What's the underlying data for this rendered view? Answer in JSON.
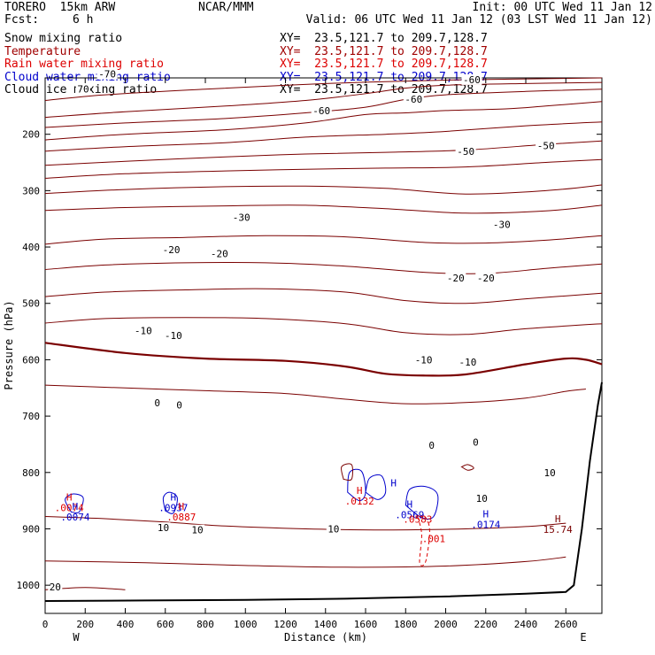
{
  "header": {
    "model": "TORERO  15km ARW",
    "center": "NCAR/MMM",
    "init": "Init: 00 UTC Wed 11 Jan 12",
    "fcst_label": "Fcst:",
    "fcst_value": "6 h",
    "valid": "Valid: 06 UTC Wed 11 Jan 12 (03 LST Wed 11 Jan 12)"
  },
  "fields": [
    {
      "name": "Snow mixing ratio",
      "xy": "XY=  23.5,121.7 to 209.7,128.7",
      "color": "#000000"
    },
    {
      "name": "Temperature",
      "xy": "XY=  23.5,121.7 to 209.7,128.7",
      "color": "#a00000"
    },
    {
      "name": "Rain water mixing ratio",
      "xy": "XY=  23.5,121.7 to 209.7,128.7",
      "color": "#dd0000"
    },
    {
      "name": "Cloud water mixing ratio",
      "xy": "XY=  23.5,121.7 to 209.7,128.7",
      "color": "#0000cc"
    },
    {
      "name": "Cloud ice mixing ratio",
      "xy": "XY=  23.5,121.7 to 209.7,128.7",
      "color": "#000000"
    }
  ],
  "chart_data": {
    "type": "line",
    "xlabel": "Distance (km)",
    "ylabel": "Pressure (hPa)",
    "xlim": [
      0,
      2780
    ],
    "ylim": [
      1050,
      100
    ],
    "x_ticks": [
      0,
      200,
      400,
      600,
      800,
      1000,
      1200,
      1400,
      1600,
      1800,
      2000,
      2200,
      2400,
      2600
    ],
    "y_ticks": [
      200,
      300,
      400,
      500,
      600,
      700,
      800,
      900,
      1000
    ],
    "x_end_labels": [
      "W",
      "E"
    ],
    "colors": {
      "temperature": "#7a0000",
      "rain": "#dd0000",
      "cloud_water": "#0000cc",
      "terrain": "#000000"
    },
    "temperature_contours": [
      {
        "value": -70,
        "points": [
          [
            0,
            140
          ],
          [
            300,
            130
          ],
          [
            800,
            120
          ],
          [
            1400,
            110
          ],
          [
            2000,
            104
          ],
          [
            2780,
            100
          ]
        ]
      },
      {
        "value": -60,
        "points": [
          [
            0,
            170
          ],
          [
            400,
            160
          ],
          [
            900,
            150
          ],
          [
            1300,
            140
          ],
          [
            1600,
            128
          ],
          [
            1800,
            118
          ],
          [
            2000,
            113
          ],
          [
            2400,
            110
          ],
          [
            2780,
            108
          ]
        ]
      },
      {
        "value": -55,
        "points": [
          [
            0,
            188
          ],
          [
            400,
            180
          ],
          [
            900,
            172
          ],
          [
            1300,
            162
          ],
          [
            1600,
            152
          ],
          [
            1800,
            138
          ],
          [
            2000,
            130
          ],
          [
            2400,
            124
          ],
          [
            2780,
            120
          ]
        ]
      },
      {
        "value": -50,
        "points": [
          [
            0,
            210
          ],
          [
            400,
            200
          ],
          [
            900,
            192
          ],
          [
            1300,
            180
          ],
          [
            1600,
            165
          ],
          [
            1800,
            162
          ],
          [
            2000,
            158
          ],
          [
            2300,
            155
          ],
          [
            2500,
            150
          ],
          [
            2780,
            142
          ]
        ]
      },
      {
        "value": -45,
        "points": [
          [
            0,
            230
          ],
          [
            400,
            222
          ],
          [
            900,
            215
          ],
          [
            1300,
            205
          ],
          [
            1700,
            200
          ],
          [
            2000,
            195
          ],
          [
            2400,
            185
          ],
          [
            2780,
            178
          ]
        ]
      },
      {
        "value": -40,
        "points": [
          [
            0,
            255
          ],
          [
            400,
            248
          ],
          [
            900,
            240
          ],
          [
            1300,
            235
          ],
          [
            1700,
            232
          ],
          [
            2100,
            228
          ],
          [
            2500,
            218
          ],
          [
            2780,
            212
          ]
        ]
      },
      {
        "value": -35,
        "points": [
          [
            0,
            278
          ],
          [
            400,
            270
          ],
          [
            900,
            265
          ],
          [
            1300,
            262
          ],
          [
            1700,
            260
          ],
          [
            2100,
            258
          ],
          [
            2500,
            250
          ],
          [
            2780,
            245
          ]
        ]
      },
      {
        "value": -30,
        "points": [
          [
            0,
            305
          ],
          [
            400,
            298
          ],
          [
            900,
            293
          ],
          [
            1300,
            292
          ],
          [
            1700,
            296
          ],
          [
            2100,
            306
          ],
          [
            2500,
            300
          ],
          [
            2780,
            290
          ]
        ]
      },
      {
        "value": -25,
        "points": [
          [
            0,
            335
          ],
          [
            400,
            330
          ],
          [
            900,
            327
          ],
          [
            1300,
            326
          ],
          [
            1700,
            332
          ],
          [
            2100,
            340
          ],
          [
            2500,
            336
          ],
          [
            2780,
            326
          ]
        ]
      },
      {
        "value": -20,
        "points": [
          [
            0,
            395
          ],
          [
            300,
            386
          ],
          [
            700,
            383
          ],
          [
            1100,
            380
          ],
          [
            1500,
            382
          ],
          [
            1900,
            392
          ],
          [
            2200,
            393
          ],
          [
            2500,
            388
          ],
          [
            2780,
            380
          ]
        ]
      },
      {
        "value": -15,
        "points": [
          [
            0,
            440
          ],
          [
            300,
            432
          ],
          [
            700,
            428
          ],
          [
            1100,
            428
          ],
          [
            1500,
            434
          ],
          [
            1900,
            445
          ],
          [
            2200,
            447
          ],
          [
            2500,
            438
          ],
          [
            2780,
            430
          ]
        ]
      },
      {
        "value": -10,
        "points": [
          [
            0,
            488
          ],
          [
            300,
            480
          ],
          [
            700,
            476
          ],
          [
            1100,
            474
          ],
          [
            1500,
            480
          ],
          [
            1800,
            495
          ],
          [
            2100,
            500
          ],
          [
            2400,
            492
          ],
          [
            2780,
            482
          ]
        ]
      },
      {
        "value": -5,
        "points": [
          [
            0,
            535
          ],
          [
            300,
            527
          ],
          [
            700,
            525
          ],
          [
            1100,
            527
          ],
          [
            1500,
            536
          ],
          [
            1800,
            552
          ],
          [
            2100,
            555
          ],
          [
            2400,
            545
          ],
          [
            2780,
            536
          ]
        ]
      },
      {
        "value": 0,
        "points": [
          [
            0,
            570
          ],
          [
            400,
            588
          ],
          [
            800,
            598
          ],
          [
            1200,
            602
          ],
          [
            1500,
            612
          ],
          [
            1700,
            625
          ],
          [
            1900,
            628
          ],
          [
            2100,
            626
          ],
          [
            2400,
            608
          ],
          [
            2600,
            598
          ],
          [
            2700,
            600
          ],
          [
            2780,
            608
          ]
        ]
      },
      {
        "value": 5,
        "points": [
          [
            0,
            645
          ],
          [
            400,
            650
          ],
          [
            800,
            655
          ],
          [
            1200,
            660
          ],
          [
            1500,
            670
          ],
          [
            1800,
            678
          ],
          [
            2100,
            676
          ],
          [
            2400,
            668
          ],
          [
            2600,
            656
          ],
          [
            2700,
            652
          ]
        ]
      },
      {
        "value": 10,
        "points": [
          [
            0,
            878
          ],
          [
            300,
            882
          ],
          [
            600,
            888
          ],
          [
            900,
            895
          ],
          [
            1300,
            900
          ],
          [
            1700,
            902
          ],
          [
            2100,
            900
          ],
          [
            2400,
            896
          ],
          [
            2600,
            890
          ]
        ]
      },
      {
        "value": 15,
        "points": [
          [
            0,
            957
          ],
          [
            500,
            960
          ],
          [
            1000,
            965
          ],
          [
            1500,
            968
          ],
          [
            2000,
            966
          ],
          [
            2400,
            958
          ],
          [
            2600,
            950
          ]
        ]
      },
      {
        "value": 20,
        "points": [
          [
            0,
            1008
          ],
          [
            200,
            1004
          ],
          [
            400,
            1008
          ]
        ]
      }
    ],
    "terrain": [
      [
        0,
        1028
      ],
      [
        500,
        1027
      ],
      [
        1000,
        1026
      ],
      [
        1500,
        1024
      ],
      [
        2000,
        1020
      ],
      [
        2400,
        1015
      ],
      [
        2600,
        1012
      ],
      [
        2640,
        1000
      ],
      [
        2680,
        900
      ],
      [
        2720,
        780
      ],
      [
        2760,
        680
      ],
      [
        2780,
        640
      ]
    ],
    "contour_labels": [
      {
        "x": 310,
        "y": 93,
        "text": "-70",
        "color": "#000000"
      },
      {
        "x": 1380,
        "y": 158,
        "text": "-60",
        "color": "#000000"
      },
      {
        "x": 1840,
        "y": 138,
        "text": "-60",
        "color": "#000000"
      },
      {
        "x": 2130,
        "y": 103,
        "text": "-60",
        "color": "#000000"
      },
      {
        "x": 2100,
        "y": 230,
        "text": "-50",
        "color": "#000000"
      },
      {
        "x": 2500,
        "y": 220,
        "text": "-50",
        "color": "#000000"
      },
      {
        "x": 980,
        "y": 347,
        "text": "-30",
        "color": "#000000"
      },
      {
        "x": 2280,
        "y": 360,
        "text": "-30",
        "color": "#000000"
      },
      {
        "x": 630,
        "y": 405,
        "text": "-20",
        "color": "#000000"
      },
      {
        "x": 870,
        "y": 412,
        "text": "-20",
        "color": "#000000"
      },
      {
        "x": 2050,
        "y": 455,
        "text": "-20",
        "color": "#000000"
      },
      {
        "x": 2200,
        "y": 455,
        "text": "-20",
        "color": "#000000"
      },
      {
        "x": 490,
        "y": 548,
        "text": "-10",
        "color": "#000000"
      },
      {
        "x": 640,
        "y": 557,
        "text": "-10",
        "color": "#000000"
      },
      {
        "x": 1890,
        "y": 600,
        "text": "-10",
        "color": "#000000"
      },
      {
        "x": 2110,
        "y": 604,
        "text": "-10",
        "color": "#000000"
      },
      {
        "x": 560,
        "y": 676,
        "text": "0",
        "color": "#000000"
      },
      {
        "x": 670,
        "y": 680,
        "text": "0",
        "color": "#000000"
      },
      {
        "x": 1930,
        "y": 752,
        "text": "0",
        "color": "#000000"
      },
      {
        "x": 2150,
        "y": 746,
        "text": "0",
        "color": "#000000"
      },
      {
        "x": 2520,
        "y": 800,
        "text": "10",
        "color": "#000000"
      },
      {
        "x": 2180,
        "y": 846,
        "text": "10",
        "color": "#000000"
      },
      {
        "x": 590,
        "y": 898,
        "text": "10",
        "color": "#000000"
      },
      {
        "x": 760,
        "y": 902,
        "text": "10",
        "color": "#000000"
      },
      {
        "x": 1440,
        "y": 900,
        "text": "10",
        "color": "#000000"
      },
      {
        "x": 50,
        "y": 1003,
        "text": "20",
        "color": "#000000"
      },
      {
        "x": 190,
        "y": 120,
        "text": "70",
        "color": "#000000"
      }
    ],
    "markers": [
      {
        "x": 120,
        "y": 850,
        "h": "H",
        "text": ".0074",
        "color": "#dd0000"
      },
      {
        "x": 150,
        "y": 866,
        "h": "H",
        "text": ".0074",
        "color": "#0000cc"
      },
      {
        "x": 640,
        "y": 850,
        "h": "H",
        "text": ".0937",
        "color": "#0000cc"
      },
      {
        "x": 680,
        "y": 866,
        "h": "H",
        "text": ".0887",
        "color": "#dd0000"
      },
      {
        "x": 1570,
        "y": 838,
        "h": "H",
        "text": ".0132",
        "color": "#dd0000"
      },
      {
        "x": 1740,
        "y": 825,
        "h": "H",
        "text": "",
        "color": "#0000cc"
      },
      {
        "x": 1820,
        "y": 862,
        "h": "H",
        "text": ".0569",
        "color": "#0000cc"
      },
      {
        "x": 1860,
        "y": 870,
        "h": "",
        "text": ".0583",
        "color": "#dd0000"
      },
      {
        "x": 1940,
        "y": 905,
        "h": "",
        "text": ".001",
        "color": "#dd0000"
      },
      {
        "x": 2200,
        "y": 880,
        "h": "H",
        "text": ".0174",
        "color": "#0000cc"
      },
      {
        "x": 2560,
        "y": 888,
        "h": "H",
        "text": "15.74",
        "color": "#7a0000"
      }
    ],
    "cloud_water_contours": [
      [
        [
          130,
          870
        ],
        [
          100,
          848
        ],
        [
          140,
          838
        ],
        [
          190,
          845
        ],
        [
          170,
          870
        ]
      ],
      [
        [
          600,
          868
        ],
        [
          590,
          845
        ],
        [
          620,
          835
        ],
        [
          660,
          845
        ],
        [
          640,
          872
        ]
      ],
      [
        [
          1510,
          835
        ],
        [
          1520,
          800
        ],
        [
          1580,
          798
        ],
        [
          1600,
          835
        ],
        [
          1570,
          850
        ]
      ],
      [
        [
          1600,
          835
        ],
        [
          1620,
          810
        ],
        [
          1680,
          806
        ],
        [
          1700,
          835
        ],
        [
          1660,
          848
        ]
      ],
      [
        [
          1800,
          858
        ],
        [
          1820,
          830
        ],
        [
          1900,
          825
        ],
        [
          1960,
          840
        ],
        [
          1940,
          878
        ],
        [
          1880,
          880
        ]
      ]
    ],
    "rain_contours": [
      [
        [
          1860,
          878
        ],
        [
          1880,
          910
        ],
        [
          1870,
          960
        ],
        [
          1900,
          958
        ],
        [
          1920,
          905
        ],
        [
          1900,
          880
        ]
      ]
    ],
    "cloud_ice_contours": [
      [
        [
          1490,
          812
        ],
        [
          1480,
          790
        ],
        [
          1530,
          786
        ],
        [
          1530,
          812
        ]
      ],
      [
        [
          2080,
          790
        ],
        [
          2110,
          786
        ],
        [
          2140,
          792
        ],
        [
          2110,
          796
        ]
      ]
    ]
  }
}
